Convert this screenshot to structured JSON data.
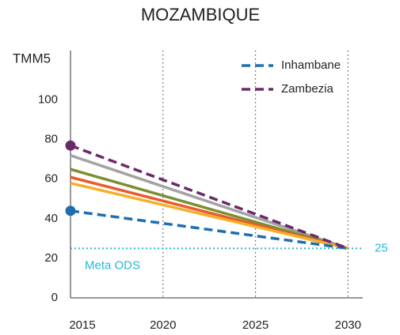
{
  "chart_data": {
    "type": "line",
    "title": "MOZAMBIQUE",
    "y_label": "TMM5",
    "x": [
      2015,
      2030
    ],
    "xlim": [
      2015,
      2030.8
    ],
    "xticks": [
      2015,
      2020,
      2025,
      2030
    ],
    "ylim": [
      0,
      125
    ],
    "yticks": [
      0,
      20,
      40,
      60,
      80,
      100
    ],
    "grid_x": true,
    "legend": "upper right",
    "series": [
      {
        "color": "#a3a3a3",
        "values": [
          72,
          25
        ]
      },
      {
        "color": "#7b8f2f",
        "values": [
          65,
          25
        ]
      },
      {
        "color": "#ea5a2a",
        "values": [
          61,
          25
        ]
      },
      {
        "color": "#f2b02b",
        "values": [
          58,
          25
        ]
      },
      {
        "name": "Inhambane",
        "color": "#1f6eb0",
        "values": [
          44,
          25
        ],
        "dashed": true,
        "start_marker": true
      },
      {
        "name": "Zambezia",
        "color": "#6a2a68",
        "values": [
          77,
          25
        ],
        "dashed": true,
        "start_marker": true
      }
    ],
    "target": {
      "value": 25,
      "text": "Meta ODS",
      "color": "#29b6d6"
    }
  }
}
